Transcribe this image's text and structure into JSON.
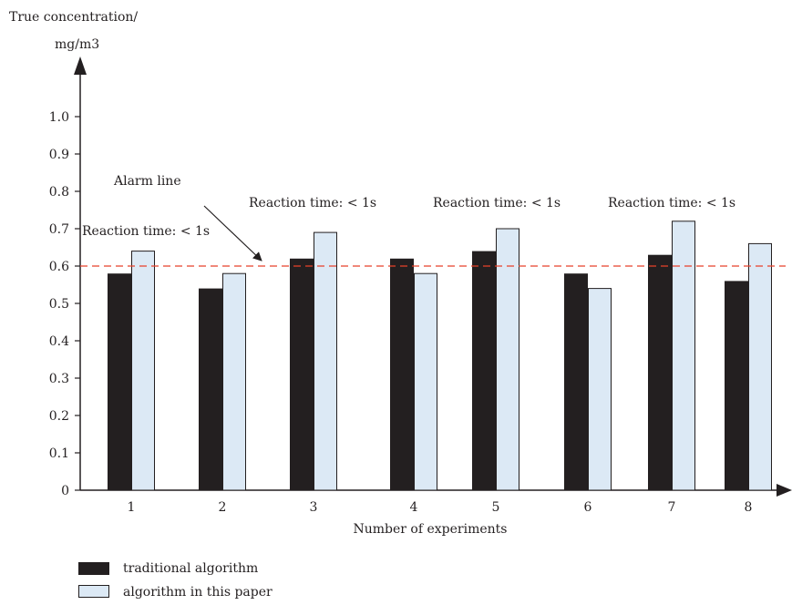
{
  "chart_data": {
    "type": "bar",
    "ylabel_line1": "True concentration/",
    "ylabel_line2": "mg/m3",
    "xlabel": "Number of experiments",
    "categories": [
      "1",
      "2",
      "3",
      "4",
      "5",
      "6",
      "7",
      "8"
    ],
    "series": [
      {
        "name": "traditional algorithm",
        "values": [
          0.58,
          0.54,
          0.62,
          0.62,
          0.64,
          0.58,
          0.63,
          0.56
        ],
        "color": "#231f20"
      },
      {
        "name": "algorithm in this paper",
        "values": [
          0.64,
          0.58,
          0.69,
          0.58,
          0.7,
          0.54,
          0.72,
          0.66
        ],
        "color": "#dce9f5"
      }
    ],
    "ylim": [
      0,
      1.0
    ],
    "yticks": [
      "0",
      "0.1",
      "0.2",
      "0.3",
      "0.4",
      "0.5",
      "0.6",
      "0.7",
      "0.8",
      "0.9",
      "1.0"
    ],
    "alarm_line": {
      "value": 0.6,
      "label": "Alarm line",
      "color": "#e8402a"
    },
    "annotations": [
      {
        "text": "Reaction time: < 1s",
        "near_category": "1"
      },
      {
        "text": "Reaction time: < 1s",
        "near_category": "3"
      },
      {
        "text": "Reaction time: < 1s",
        "near_category": "5"
      },
      {
        "text": "Reaction time: < 1s",
        "near_category": "7"
      }
    ],
    "legend_position": "bottom-left",
    "grid": false
  }
}
